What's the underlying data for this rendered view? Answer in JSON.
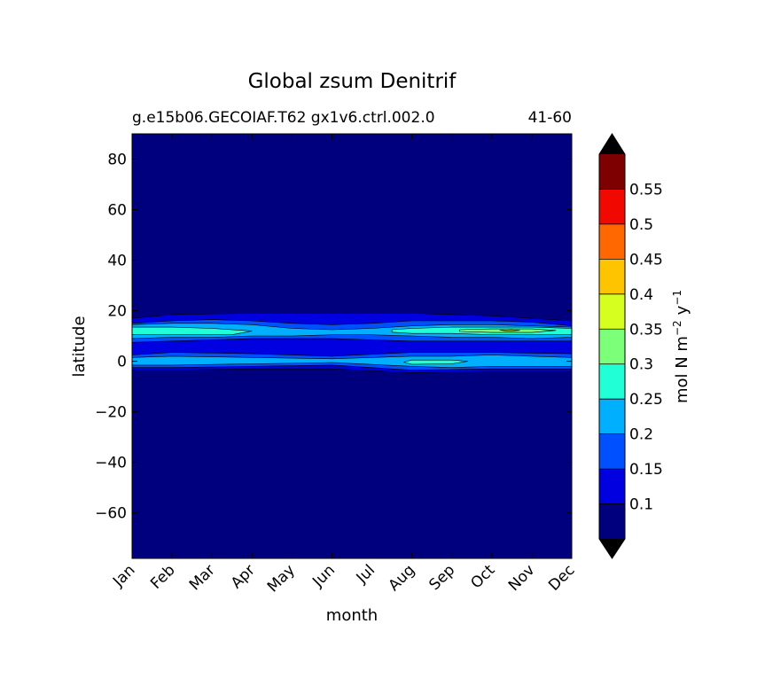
{
  "chart_data": {
    "type": "heatmap",
    "title": "Global zsum Denitrif",
    "subtitle_left": "g.e15b06.GECOIAF.T62 gx1v6.ctrl.002.0",
    "subtitle_right": "41-60",
    "xlabel": "month",
    "ylabel": "latitude",
    "x_ticks": [
      "Jan",
      "Feb",
      "Mar",
      "Apr",
      "May",
      "Jun",
      "Jul",
      "Aug",
      "Sep",
      "Oct",
      "Nov",
      "Dec"
    ],
    "y_ticks": [
      "80",
      "60",
      "40",
      "20",
      "0",
      "−20",
      "−40",
      "−60"
    ],
    "y_tick_values": [
      80,
      60,
      40,
      20,
      0,
      -20,
      -40,
      -60
    ],
    "ylim": [
      -78,
      90
    ],
    "x_values": [
      1,
      2,
      3,
      4,
      5,
      6,
      7,
      8,
      9,
      10,
      11,
      12
    ],
    "colorbar": {
      "unit_base": "mol N m",
      "unit_exp1": "−2",
      "unit_mid": "y",
      "unit_exp2": "−1",
      "tick_labels": [
        "0.1",
        "0.15",
        "0.2",
        "0.25",
        "0.3",
        "0.35",
        "0.4",
        "0.45",
        "0.5",
        "0.55"
      ],
      "levels": [
        0.05,
        0.1,
        0.15,
        0.2,
        0.25,
        0.3,
        0.35,
        0.4,
        0.45,
        0.5,
        0.55,
        0.6
      ],
      "colors": [
        "#00007f",
        "#0000e0",
        "#0050ff",
        "#00b0ff",
        "#20ffd6",
        "#7cff79",
        "#d6ff1f",
        "#ffc400",
        "#ff6800",
        "#f10800",
        "#7f0000"
      ],
      "under_color": "#000000",
      "over_color": "#000000",
      "extend": "both"
    },
    "bands": [
      {
        "level": 0.1,
        "color": "#0000e0",
        "path": [
          [
            1,
            17
          ],
          [
            2,
            18.5
          ],
          [
            4,
            19
          ],
          [
            6,
            19
          ],
          [
            8,
            19
          ],
          [
            10,
            18
          ],
          [
            12,
            16
          ],
          [
            12,
            -4
          ],
          [
            10,
            -4
          ],
          [
            8,
            -4.5
          ],
          [
            6,
            -3
          ],
          [
            4,
            -3
          ],
          [
            2,
            -3.5
          ],
          [
            1,
            -3.5
          ]
        ]
      },
      {
        "level": 0.15,
        "color": "#0050ff",
        "path": [
          [
            1,
            15
          ],
          [
            2,
            16
          ],
          [
            3,
            16.5
          ],
          [
            4,
            16
          ],
          [
            5,
            15
          ],
          [
            6,
            14.5
          ],
          [
            7,
            15
          ],
          [
            8,
            16
          ],
          [
            9,
            16
          ],
          [
            10,
            16
          ],
          [
            11,
            15.5
          ],
          [
            12,
            14
          ],
          [
            12,
            8
          ],
          [
            10,
            8
          ],
          [
            8,
            8
          ],
          [
            7,
            8.5
          ],
          [
            6,
            9
          ],
          [
            5,
            9
          ],
          [
            4,
            9
          ],
          [
            3,
            8.5
          ],
          [
            2,
            8
          ],
          [
            1,
            7.5
          ]
        ]
      },
      {
        "level": 0.15,
        "color": "#0050ff",
        "path": [
          [
            1,
            2.5
          ],
          [
            2,
            3.5
          ],
          [
            4,
            3
          ],
          [
            6,
            2
          ],
          [
            8,
            3.5
          ],
          [
            10,
            3.5
          ],
          [
            12,
            3
          ],
          [
            12,
            -3
          ],
          [
            10,
            -3
          ],
          [
            8,
            -3.5
          ],
          [
            6,
            -1.5
          ],
          [
            4,
            -2
          ],
          [
            2,
            -2.5
          ],
          [
            1,
            -2.5
          ]
        ]
      },
      {
        "level": 0.2,
        "color": "#00b0ff",
        "path": [
          [
            1,
            14.5
          ],
          [
            2,
            15
          ],
          [
            3,
            15
          ],
          [
            4,
            14.5
          ],
          [
            5,
            13
          ],
          [
            6,
            12.5
          ],
          [
            7,
            13
          ],
          [
            8,
            14
          ],
          [
            9,
            14.5
          ],
          [
            10,
            14.5
          ],
          [
            11,
            14
          ],
          [
            12,
            13.5
          ],
          [
            12,
            9.5
          ],
          [
            11,
            9
          ],
          [
            10,
            9.5
          ],
          [
            9,
            9.5
          ],
          [
            8,
            10
          ],
          [
            7,
            10.5
          ],
          [
            6,
            10.5
          ],
          [
            5,
            10
          ],
          [
            4,
            10
          ],
          [
            3,
            9.5
          ],
          [
            2,
            9.5
          ],
          [
            1,
            9
          ]
        ]
      },
      {
        "level": 0.2,
        "color": "#00b0ff",
        "path": [
          [
            1,
            1.5
          ],
          [
            2,
            2
          ],
          [
            4,
            1.5
          ],
          [
            6,
            1
          ],
          [
            8,
            2
          ],
          [
            9,
            2
          ],
          [
            10,
            2.5
          ],
          [
            11,
            2
          ],
          [
            12,
            1.5
          ],
          [
            12,
            -2
          ],
          [
            11,
            -2
          ],
          [
            10,
            -2
          ],
          [
            9,
            -2.5
          ],
          [
            8,
            -2
          ],
          [
            6,
            -0.5
          ],
          [
            4,
            -1
          ],
          [
            2,
            -1.5
          ],
          [
            1,
            -1.5
          ]
        ]
      },
      {
        "level": 0.25,
        "color": "#20ffd6",
        "path": [
          [
            1,
            13.5
          ],
          [
            2,
            13.5
          ],
          [
            3,
            13
          ],
          [
            4,
            12
          ],
          [
            3.5,
            10.5
          ],
          [
            3,
            10.5
          ],
          [
            2,
            10.5
          ],
          [
            1,
            10.5
          ]
        ]
      },
      {
        "level": 0.25,
        "color": "#20ffd6",
        "path": [
          [
            7.5,
            12.5
          ],
          [
            8,
            13
          ],
          [
            9,
            13.5
          ],
          [
            10,
            13.5
          ],
          [
            11,
            13.5
          ],
          [
            12,
            13
          ],
          [
            12,
            10.5
          ],
          [
            11,
            10.5
          ],
          [
            10,
            10.5
          ],
          [
            9,
            11
          ],
          [
            8,
            11
          ],
          [
            7.5,
            11.5
          ]
        ]
      },
      {
        "level": 0.25,
        "color": "#20ffd6",
        "path": [
          [
            8,
            0.5
          ],
          [
            9,
            0.5
          ],
          [
            9.4,
            0
          ],
          [
            9,
            -1
          ],
          [
            8,
            -1.2
          ],
          [
            7.8,
            -0.3
          ]
        ]
      },
      {
        "level": 0.3,
        "color": "#7cff79",
        "path": [
          [
            9.2,
            12.5
          ],
          [
            10,
            12.8
          ],
          [
            11,
            12.8
          ],
          [
            11.6,
            12.2
          ],
          [
            11,
            11.4
          ],
          [
            10,
            11.4
          ],
          [
            9.2,
            11.8
          ]
        ]
      },
      {
        "level": 0.35,
        "color": "#d6ff1f",
        "path": [
          [
            10.2,
            12.3
          ],
          [
            10.5,
            12.5
          ],
          [
            10.7,
            12.2
          ],
          [
            10.4,
            11.9
          ]
        ]
      }
    ]
  }
}
